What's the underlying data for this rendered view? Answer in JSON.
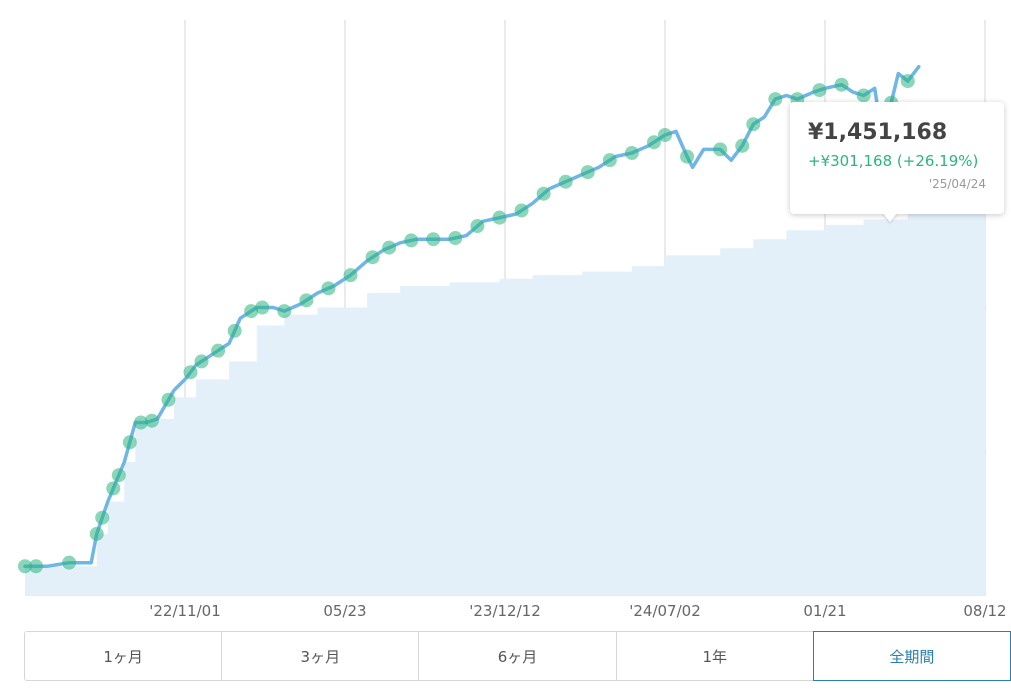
{
  "chart_data": {
    "type": "line",
    "title": "",
    "xlabel": "",
    "ylabel": "",
    "x_ticks": [
      "'22/11/01",
      "05/23",
      "'23/12/12",
      "'24/07/02",
      "01/21",
      "08/12"
    ],
    "x_range": [
      "2022-04-12",
      "2025-08-12"
    ],
    "y_range": [
      0,
      1600000
    ],
    "y_gridlines": [
      0,
      400000,
      800000,
      1200000
    ],
    "grid_vertical": true,
    "series": [
      {
        "key": "valuation",
        "style": "line",
        "color": "#6fb6e6",
        "points": [
          [
            "2022-04-12",
            80000
          ],
          [
            "2022-05-10",
            80000
          ],
          [
            "2022-06-07",
            90000
          ],
          [
            "2022-07-05",
            90000
          ],
          [
            "2022-07-12",
            170000
          ],
          [
            "2022-07-26",
            260000
          ],
          [
            "2022-08-16",
            370000
          ],
          [
            "2022-08-30",
            480000
          ],
          [
            "2022-09-13",
            480000
          ],
          [
            "2022-09-27",
            490000
          ],
          [
            "2022-10-18",
            570000
          ],
          [
            "2022-11-01",
            600000
          ],
          [
            "2022-11-15",
            640000
          ],
          [
            "2022-12-06",
            670000
          ],
          [
            "2022-12-27",
            700000
          ],
          [
            "2023-01-10",
            770000
          ],
          [
            "2023-01-31",
            800000
          ],
          [
            "2023-02-21",
            800000
          ],
          [
            "2023-03-07",
            790000
          ],
          [
            "2023-03-28",
            810000
          ],
          [
            "2023-04-18",
            840000
          ],
          [
            "2023-05-09",
            860000
          ],
          [
            "2023-05-30",
            890000
          ],
          [
            "2023-06-20",
            930000
          ],
          [
            "2023-07-11",
            960000
          ],
          [
            "2023-08-01",
            980000
          ],
          [
            "2023-08-22",
            990000
          ],
          [
            "2023-09-12",
            990000
          ],
          [
            "2023-10-03",
            990000
          ],
          [
            "2023-10-24",
            1000000
          ],
          [
            "2023-11-14",
            1040000
          ],
          [
            "2023-12-05",
            1050000
          ],
          [
            "2023-12-26",
            1060000
          ],
          [
            "2024-01-16",
            1090000
          ],
          [
            "2024-02-06",
            1130000
          ],
          [
            "2024-02-27",
            1150000
          ],
          [
            "2024-03-19",
            1170000
          ],
          [
            "2024-04-09",
            1190000
          ],
          [
            "2024-04-30",
            1220000
          ],
          [
            "2024-05-21",
            1230000
          ],
          [
            "2024-06-11",
            1250000
          ],
          [
            "2024-07-02",
            1280000
          ],
          [
            "2024-07-16",
            1290000
          ],
          [
            "2024-07-30",
            1220000
          ],
          [
            "2024-08-06",
            1190000
          ],
          [
            "2024-08-20",
            1240000
          ],
          [
            "2024-09-10",
            1240000
          ],
          [
            "2024-09-24",
            1210000
          ],
          [
            "2024-10-08",
            1250000
          ],
          [
            "2024-10-22",
            1310000
          ],
          [
            "2024-11-05",
            1330000
          ],
          [
            "2024-11-19",
            1380000
          ],
          [
            "2024-12-03",
            1390000
          ],
          [
            "2024-12-17",
            1380000
          ],
          [
            "2025-01-07",
            1400000
          ],
          [
            "2025-01-21",
            1410000
          ],
          [
            "2025-02-11",
            1420000
          ],
          [
            "2025-02-25",
            1400000
          ],
          [
            "2025-03-11",
            1390000
          ],
          [
            "2025-03-25",
            1410000
          ],
          [
            "2025-04-01",
            1310000
          ],
          [
            "2025-04-08",
            1330000
          ],
          [
            "2025-04-15",
            1370000
          ],
          [
            "2025-04-24",
            1451168
          ],
          [
            "2025-05-06",
            1430000
          ],
          [
            "2025-05-20",
            1470000
          ]
        ]
      },
      {
        "key": "principal",
        "style": "area",
        "color": "#e3f0fa",
        "points": [
          [
            "2022-04-12",
            80000
          ],
          [
            "2022-07-05",
            80000
          ],
          [
            "2022-07-12",
            170000
          ],
          [
            "2022-07-26",
            260000
          ],
          [
            "2022-08-16",
            370000
          ],
          [
            "2022-08-30",
            480000
          ],
          [
            "2022-09-27",
            490000
          ],
          [
            "2022-10-18",
            550000
          ],
          [
            "2022-11-15",
            600000
          ],
          [
            "2022-12-27",
            650000
          ],
          [
            "2023-01-31",
            750000
          ],
          [
            "2023-03-07",
            780000
          ],
          [
            "2023-04-18",
            800000
          ],
          [
            "2023-06-20",
            840000
          ],
          [
            "2023-08-01",
            860000
          ],
          [
            "2023-10-03",
            870000
          ],
          [
            "2023-12-05",
            880000
          ],
          [
            "2024-01-16",
            890000
          ],
          [
            "2024-03-19",
            900000
          ],
          [
            "2024-05-21",
            915000
          ],
          [
            "2024-07-02",
            945000
          ],
          [
            "2024-09-10",
            965000
          ],
          [
            "2024-10-22",
            990000
          ],
          [
            "2024-12-03",
            1015000
          ],
          [
            "2025-01-21",
            1030000
          ],
          [
            "2025-03-11",
            1045000
          ],
          [
            "2025-05-06",
            1070000
          ],
          [
            "2025-06-17",
            1100000
          ],
          [
            "2025-07-15",
            1145000
          ],
          [
            "2025-08-05",
            1170000
          ],
          [
            "2025-08-12",
            1170000
          ]
        ]
      }
    ],
    "markers": {
      "color": "#2bb57f",
      "dates": [
        "2022-04-12",
        "2022-04-26",
        "2022-06-07",
        "2022-07-12",
        "2022-07-19",
        "2022-08-02",
        "2022-08-09",
        "2022-08-23",
        "2022-09-06",
        "2022-09-20",
        "2022-10-11",
        "2022-11-08",
        "2022-11-22",
        "2022-12-13",
        "2023-01-03",
        "2023-01-24",
        "2023-02-07",
        "2023-03-07",
        "2023-04-04",
        "2023-05-02",
        "2023-05-30",
        "2023-06-27",
        "2023-07-18",
        "2023-08-15",
        "2023-09-12",
        "2023-10-10",
        "2023-11-07",
        "2023-12-05",
        "2024-01-02",
        "2024-01-30",
        "2024-02-27",
        "2024-03-26",
        "2024-04-23",
        "2024-05-21",
        "2024-06-18",
        "2024-07-02",
        "2024-07-30",
        "2024-09-10",
        "2024-10-08",
        "2024-10-22",
        "2024-11-19",
        "2024-12-17",
        "2025-01-14",
        "2025-02-11",
        "2025-03-11",
        "2025-04-15",
        "2025-05-06"
      ]
    }
  },
  "tooltip": {
    "value": "¥1,451,168",
    "change": "+¥301,168 (+26.19%)",
    "date": "'25/04/24"
  },
  "periods": [
    {
      "label": "1ヶ月",
      "active": false
    },
    {
      "label": "3ヶ月",
      "active": false
    },
    {
      "label": "6ヶ月",
      "active": false
    },
    {
      "label": "1年",
      "active": false
    },
    {
      "label": "全期間",
      "active": true
    }
  ]
}
